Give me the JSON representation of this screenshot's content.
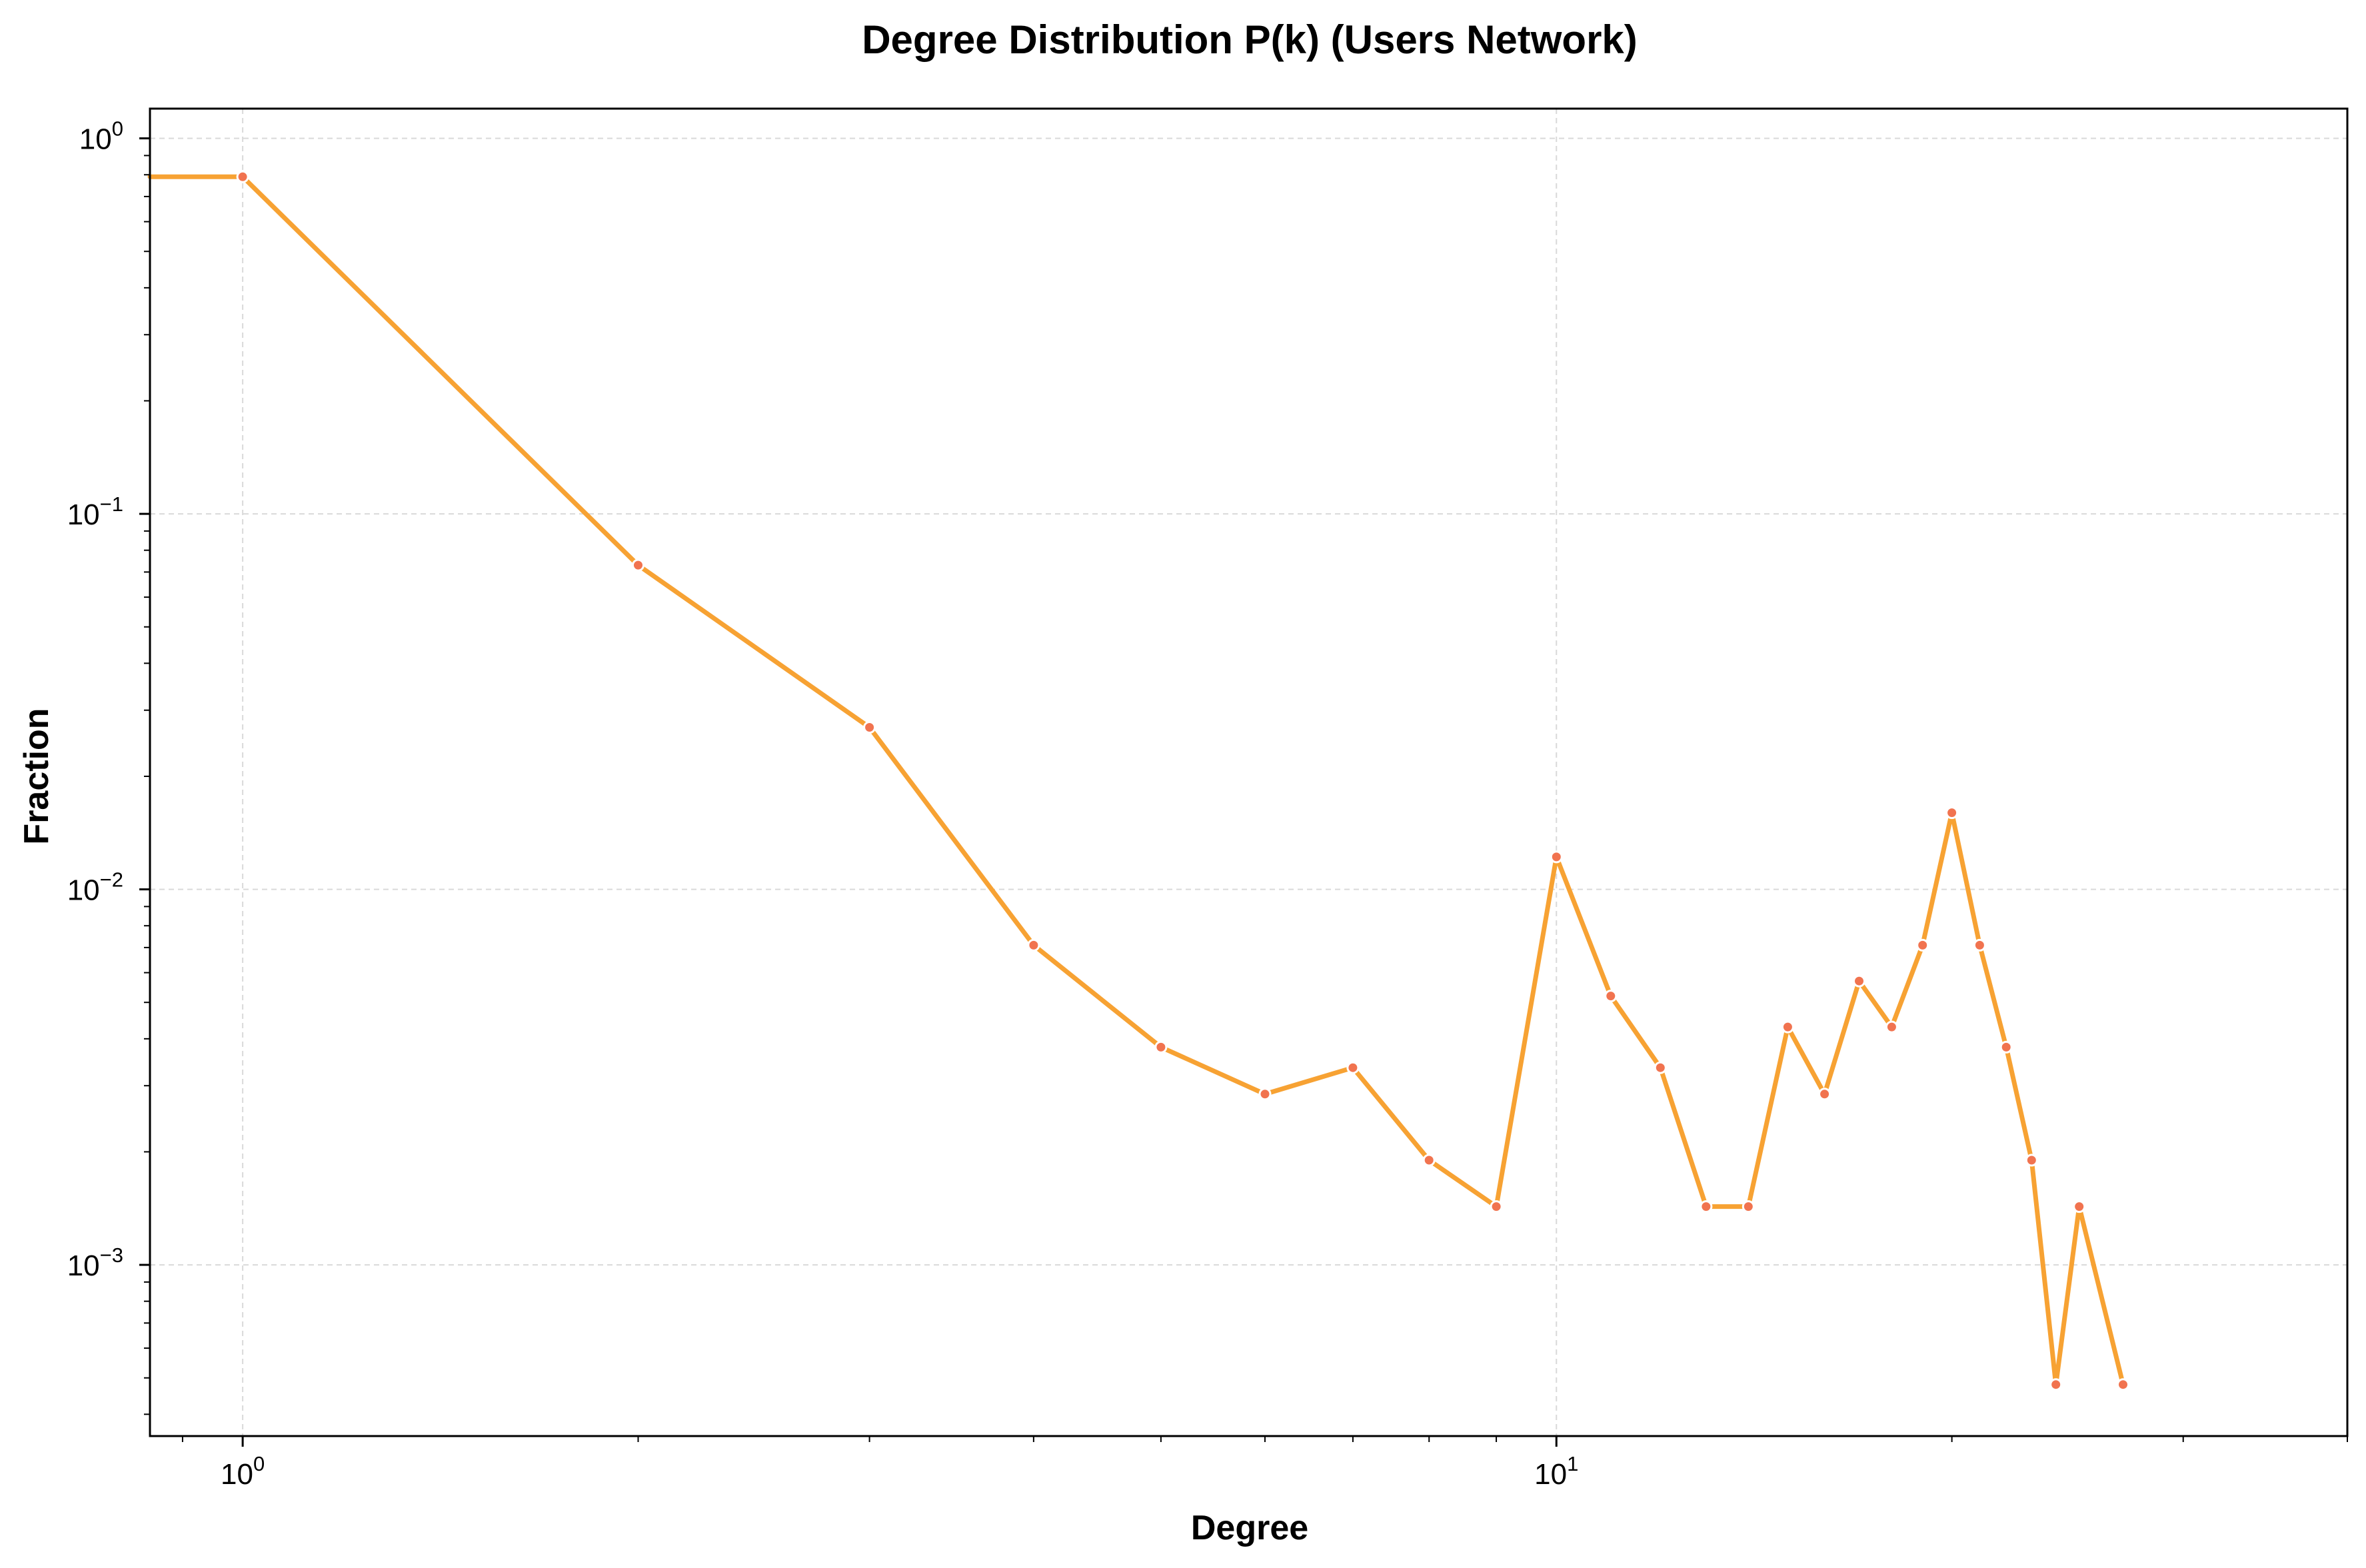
{
  "chart_data": {
    "type": "line",
    "title": "Degree Distribution P(k) (Users Network)",
    "xlabel": "Degree",
    "ylabel": "Fraction",
    "xscale": "log",
    "yscale": "log",
    "xlim": [
      0.85,
      40
    ],
    "ylim": [
      0.00035,
      1.2
    ],
    "grid": true,
    "line_color": "#F7A233",
    "marker_color": "#F1734F",
    "x_ticks": [
      {
        "value": 1,
        "base": "10",
        "exp": "0"
      },
      {
        "value": 10,
        "base": "10",
        "exp": "1"
      }
    ],
    "y_ticks": [
      {
        "value": 1,
        "base": "10",
        "exp": "0"
      },
      {
        "value": 0.1,
        "base": "10",
        "exp": "−1"
      },
      {
        "value": 0.01,
        "base": "10",
        "exp": "−2"
      },
      {
        "value": 0.001,
        "base": "10",
        "exp": "−3"
      }
    ],
    "series": [
      {
        "x": [
          1,
          2,
          3,
          4,
          5,
          6,
          7,
          8,
          9,
          10,
          11,
          12,
          13,
          14,
          15,
          16,
          17,
          18,
          19,
          20,
          21,
          22,
          23,
          24,
          25,
          27
        ],
        "y": [
          0.79,
          0.073,
          0.027,
          0.0071,
          0.0038,
          0.00285,
          0.00335,
          0.0019,
          0.00143,
          0.0122,
          0.0052,
          0.00335,
          0.00143,
          0.00143,
          0.0043,
          0.00285,
          0.0057,
          0.0043,
          0.0071,
          0.016,
          0.0071,
          0.0038,
          0.0019,
          0.00048,
          0.00143,
          0.00048
        ]
      }
    ]
  }
}
